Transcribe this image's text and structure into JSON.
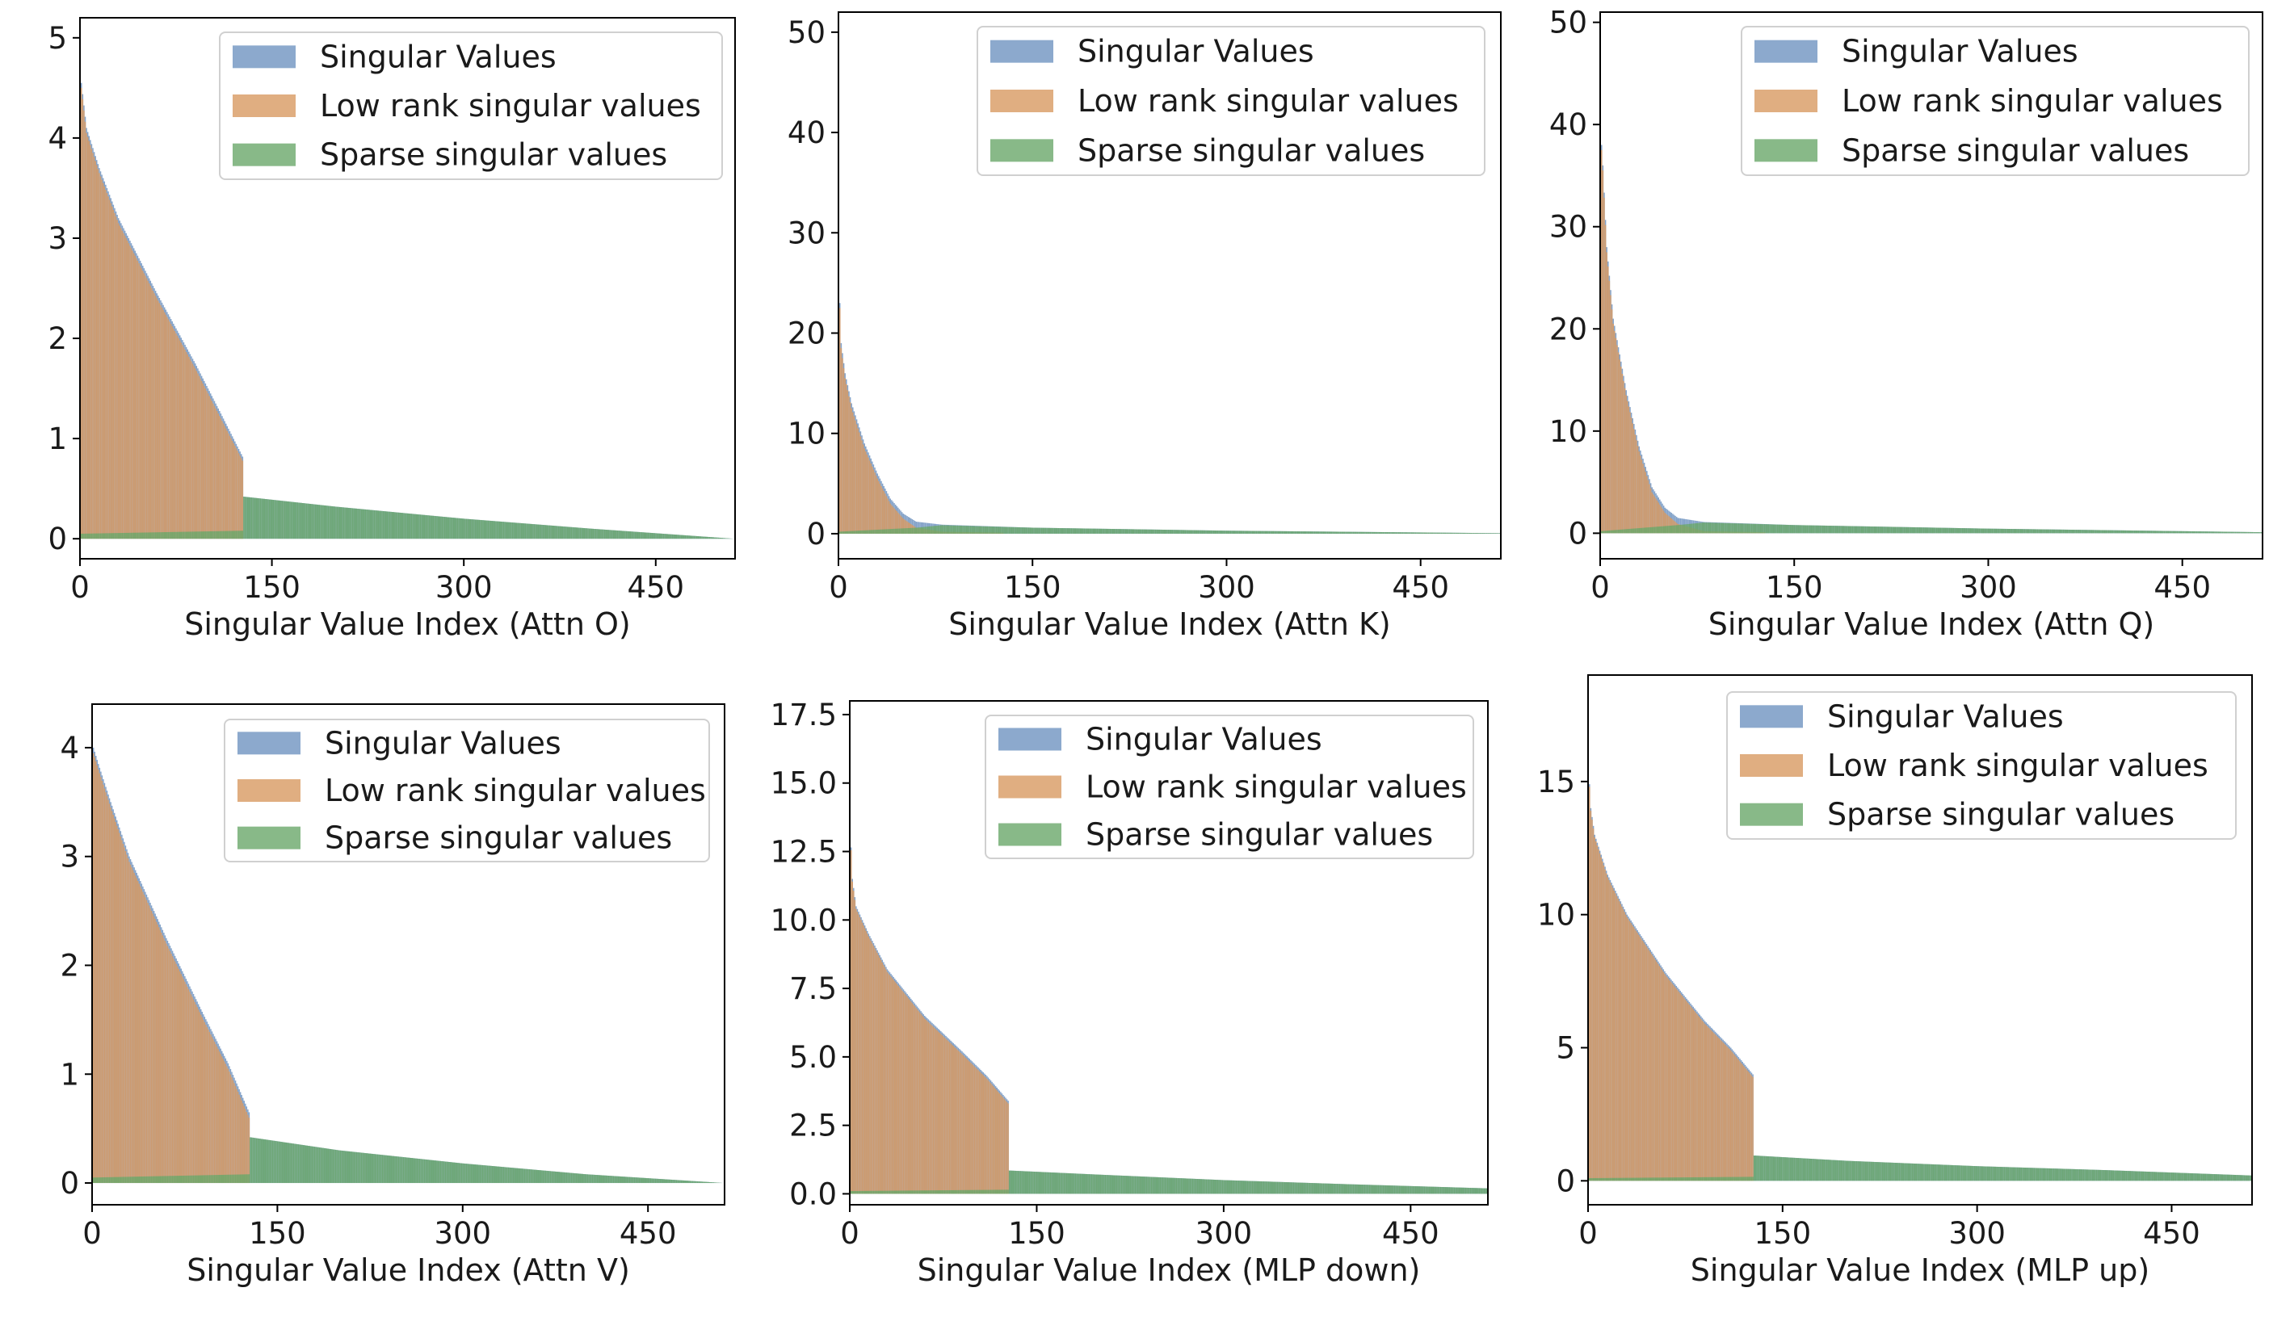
{
  "figure": {
    "colors": {
      "singular": "#6f93c0",
      "low_rank": "#d89a62",
      "sparse": "#6aa86a",
      "overlap": "#b08850",
      "axis": "#000000"
    }
  },
  "chart_data": [
    {
      "type": "bar",
      "title": "",
      "xlabel": "Singular Value Index (Attn O)",
      "ylabel": "",
      "xlim": [
        0,
        512
      ],
      "ylim": [
        -0.2,
        5.2
      ],
      "xticks": [
        0,
        150,
        300,
        450
      ],
      "xtick_labels": [
        "0",
        "150",
        "300",
        "450"
      ],
      "yticks": [
        0,
        1,
        2,
        3,
        4,
        5
      ],
      "ytick_labels": [
        "0",
        "1",
        "2",
        "3",
        "4",
        "5"
      ],
      "legend": [
        "Singular Values",
        "Low rank singular values",
        "Sparse singular values"
      ],
      "legend_position": "top-right",
      "n_values": 512,
      "rank_cutoff": 128,
      "series": [
        {
          "name": "Singular Values",
          "points": [
            [
              0,
              4.9
            ],
            [
              1,
              4.55
            ],
            [
              5,
              4.1
            ],
            [
              15,
              3.7
            ],
            [
              30,
              3.2
            ],
            [
              60,
              2.45
            ],
            [
              90,
              1.75
            ],
            [
              110,
              1.25
            ],
            [
              127,
              0.82
            ],
            [
              128,
              0.42
            ],
            [
              200,
              0.32
            ],
            [
              300,
              0.2
            ],
            [
              400,
              0.1
            ],
            [
              511,
              0.0
            ]
          ]
        },
        {
          "name": "Low rank singular values",
          "points": [
            [
              0,
              4.85
            ],
            [
              1,
              4.5
            ],
            [
              5,
              4.05
            ],
            [
              15,
              3.65
            ],
            [
              30,
              3.15
            ],
            [
              60,
              2.4
            ],
            [
              90,
              1.7
            ],
            [
              110,
              1.2
            ],
            [
              127,
              0.78
            ],
            [
              128,
              0.0
            ]
          ]
        },
        {
          "name": "Sparse singular values",
          "points": [
            [
              0,
              0.05
            ],
            [
              127,
              0.08
            ],
            [
              128,
              0.42
            ],
            [
              200,
              0.32
            ],
            [
              300,
              0.2
            ],
            [
              400,
              0.1
            ],
            [
              511,
              0.0
            ]
          ]
        }
      ]
    },
    {
      "type": "bar",
      "title": "",
      "xlabel": "Singular Value Index (Attn K)",
      "ylabel": "",
      "xlim": [
        0,
        512
      ],
      "ylim": [
        -2.5,
        52.0
      ],
      "xticks": [
        0,
        150,
        300,
        450
      ],
      "xtick_labels": [
        "0",
        "150",
        "300",
        "450"
      ],
      "yticks": [
        0,
        10,
        20,
        30,
        40,
        50
      ],
      "ytick_labels": [
        "0",
        "10",
        "20",
        "30",
        "40",
        "50"
      ],
      "legend": [
        "Singular Values",
        "Low rank singular values",
        "Sparse singular values"
      ],
      "legend_position": "top-right",
      "n_values": 512,
      "rank_cutoff": 128,
      "series": [
        {
          "name": "Singular Values",
          "points": [
            [
              0,
              27
            ],
            [
              2,
              19
            ],
            [
              5,
              16
            ],
            [
              10,
              13
            ],
            [
              20,
              9
            ],
            [
              30,
              6
            ],
            [
              40,
              3.5
            ],
            [
              50,
              2
            ],
            [
              60,
              1.2
            ],
            [
              80,
              0.9
            ],
            [
              150,
              0.6
            ],
            [
              300,
              0.3
            ],
            [
              511,
              0.05
            ]
          ]
        },
        {
          "name": "Low rank singular values",
          "points": [
            [
              0,
              26.5
            ],
            [
              2,
              18.5
            ],
            [
              5,
              15.5
            ],
            [
              10,
              12.5
            ],
            [
              20,
              8.5
            ],
            [
              30,
              5.5
            ],
            [
              40,
              3
            ],
            [
              50,
              1.5
            ],
            [
              60,
              0.6
            ],
            [
              80,
              0.2
            ],
            [
              127,
              0.1
            ],
            [
              128,
              0.0
            ]
          ]
        },
        {
          "name": "Sparse singular values",
          "points": [
            [
              0,
              0.2
            ],
            [
              60,
              0.6
            ],
            [
              80,
              0.85
            ],
            [
              150,
              0.6
            ],
            [
              300,
              0.3
            ],
            [
              511,
              0.05
            ]
          ]
        }
      ]
    },
    {
      "type": "bar",
      "title": "",
      "xlabel": "Singular Value Index (Attn Q)",
      "ylabel": "",
      "xlim": [
        0,
        512
      ],
      "ylim": [
        -2.5,
        51.0
      ],
      "xticks": [
        0,
        150,
        300,
        450
      ],
      "xtick_labels": [
        "0",
        "150",
        "300",
        "450"
      ],
      "yticks": [
        0,
        10,
        20,
        30,
        40,
        50
      ],
      "ytick_labels": [
        "0",
        "10",
        "20",
        "30",
        "40",
        "50"
      ],
      "legend": [
        "Singular Values",
        "Low rank singular values",
        "Sparse singular values"
      ],
      "legend_position": "top-right",
      "n_values": 512,
      "rank_cutoff": 128,
      "series": [
        {
          "name": "Singular Values",
          "points": [
            [
              0,
              40
            ],
            [
              2,
              36
            ],
            [
              5,
              28
            ],
            [
              10,
              21
            ],
            [
              20,
              14
            ],
            [
              30,
              8.5
            ],
            [
              40,
              4.5
            ],
            [
              50,
              2.5
            ],
            [
              60,
              1.5
            ],
            [
              80,
              1.1
            ],
            [
              150,
              0.8
            ],
            [
              300,
              0.45
            ],
            [
              511,
              0.1
            ]
          ]
        },
        {
          "name": "Low rank singular values",
          "points": [
            [
              0,
              39.5
            ],
            [
              2,
              35.5
            ],
            [
              5,
              27.5
            ],
            [
              10,
              20.5
            ],
            [
              20,
              13.5
            ],
            [
              30,
              8
            ],
            [
              40,
              4
            ],
            [
              50,
              2
            ],
            [
              60,
              0.9
            ],
            [
              80,
              0.2
            ],
            [
              127,
              0.1
            ],
            [
              128,
              0.0
            ]
          ]
        },
        {
          "name": "Sparse singular values",
          "points": [
            [
              0,
              0.2
            ],
            [
              60,
              0.8
            ],
            [
              80,
              1.05
            ],
            [
              150,
              0.8
            ],
            [
              300,
              0.45
            ],
            [
              511,
              0.1
            ]
          ]
        }
      ]
    },
    {
      "type": "bar",
      "title": "",
      "xlabel": "Singular Value Index (Attn V)",
      "ylabel": "",
      "xlim": [
        0,
        512
      ],
      "ylim": [
        -0.2,
        4.4
      ],
      "xticks": [
        0,
        150,
        300,
        450
      ],
      "xtick_labels": [
        "0",
        "150",
        "300",
        "450"
      ],
      "yticks": [
        0,
        1,
        2,
        3,
        4
      ],
      "ytick_labels": [
        "0",
        "1",
        "2",
        "3",
        "4"
      ],
      "legend": [
        "Singular Values",
        "Low rank singular values",
        "Sparse singular values"
      ],
      "legend_position": "top-right",
      "n_values": 512,
      "rank_cutoff": 128,
      "series": [
        {
          "name": "Singular Values",
          "points": [
            [
              0,
              4.1
            ],
            [
              1,
              4.0
            ],
            [
              5,
              3.85
            ],
            [
              15,
              3.5
            ],
            [
              30,
              3.0
            ],
            [
              60,
              2.25
            ],
            [
              90,
              1.55
            ],
            [
              110,
              1.1
            ],
            [
              127,
              0.65
            ],
            [
              128,
              0.42
            ],
            [
              200,
              0.3
            ],
            [
              300,
              0.18
            ],
            [
              400,
              0.08
            ],
            [
              511,
              0.0
            ]
          ]
        },
        {
          "name": "Low rank singular values",
          "points": [
            [
              0,
              4.05
            ],
            [
              1,
              3.95
            ],
            [
              5,
              3.8
            ],
            [
              15,
              3.45
            ],
            [
              30,
              2.95
            ],
            [
              60,
              2.2
            ],
            [
              90,
              1.5
            ],
            [
              110,
              1.05
            ],
            [
              127,
              0.6
            ],
            [
              128,
              0.0
            ]
          ]
        },
        {
          "name": "Sparse singular values",
          "points": [
            [
              0,
              0.05
            ],
            [
              127,
              0.08
            ],
            [
              128,
              0.42
            ],
            [
              200,
              0.3
            ],
            [
              300,
              0.18
            ],
            [
              400,
              0.08
            ],
            [
              511,
              0.0
            ]
          ]
        }
      ]
    },
    {
      "type": "bar",
      "title": "",
      "xlabel": "Singular Value Index (MLP down)",
      "ylabel": "",
      "xlim": [
        0,
        512
      ],
      "ylim": [
        -0.4,
        18.0
      ],
      "xticks": [
        0,
        150,
        300,
        450
      ],
      "xtick_labels": [
        "0",
        "150",
        "300",
        "450"
      ],
      "yticks": [
        0,
        2.5,
        5,
        7.5,
        10,
        12.5,
        15,
        17.5
      ],
      "ytick_labels": [
        "0.0",
        "2.5",
        "5.0",
        "7.5",
        "10.0",
        "12.5",
        "15.0",
        "17.5"
      ],
      "legend": [
        "Singular Values",
        "Low rank singular values",
        "Sparse singular values"
      ],
      "legend_position": "top-right",
      "n_values": 512,
      "rank_cutoff": 128,
      "series": [
        {
          "name": "Singular Values",
          "points": [
            [
              0,
              13.8
            ],
            [
              2,
              11.5
            ],
            [
              5,
              10.5
            ],
            [
              15,
              9.5
            ],
            [
              30,
              8.2
            ],
            [
              60,
              6.5
            ],
            [
              90,
              5.2
            ],
            [
              110,
              4.3
            ],
            [
              127,
              3.4
            ],
            [
              128,
              0.85
            ],
            [
              200,
              0.7
            ],
            [
              300,
              0.5
            ],
            [
              400,
              0.35
            ],
            [
              511,
              0.2
            ]
          ]
        },
        {
          "name": "Low rank singular values",
          "points": [
            [
              0,
              13.7
            ],
            [
              2,
              11.4
            ],
            [
              5,
              10.4
            ],
            [
              15,
              9.4
            ],
            [
              30,
              8.1
            ],
            [
              60,
              6.4
            ],
            [
              90,
              5.1
            ],
            [
              110,
              4.2
            ],
            [
              127,
              3.3
            ],
            [
              128,
              0.0
            ]
          ]
        },
        {
          "name": "Sparse singular values",
          "points": [
            [
              0,
              0.1
            ],
            [
              127,
              0.15
            ],
            [
              128,
              0.85
            ],
            [
              200,
              0.7
            ],
            [
              300,
              0.5
            ],
            [
              400,
              0.35
            ],
            [
              511,
              0.2
            ]
          ]
        }
      ]
    },
    {
      "type": "bar",
      "title": "",
      "xlabel": "Singular Value Index (MLP up)",
      "ylabel": "",
      "xlim": [
        0,
        512
      ],
      "ylim": [
        -0.9,
        19.0
      ],
      "xticks": [
        0,
        150,
        300,
        450
      ],
      "xtick_labels": [
        "0",
        "150",
        "300",
        "450"
      ],
      "yticks": [
        0,
        5,
        10,
        15
      ],
      "ytick_labels": [
        "0",
        "5",
        "10",
        "15"
      ],
      "legend": [
        "Singular Values",
        "Low rank singular values",
        "Sparse singular values"
      ],
      "legend_position": "top-right",
      "n_values": 512,
      "rank_cutoff": 128,
      "series": [
        {
          "name": "Singular Values",
          "points": [
            [
              0,
              15.8
            ],
            [
              2,
              14
            ],
            [
              5,
              13
            ],
            [
              15,
              11.5
            ],
            [
              30,
              10
            ],
            [
              60,
              7.8
            ],
            [
              90,
              6
            ],
            [
              110,
              5
            ],
            [
              127,
              4
            ],
            [
              128,
              0.95
            ],
            [
              200,
              0.75
            ],
            [
              300,
              0.55
            ],
            [
              400,
              0.4
            ],
            [
              511,
              0.2
            ]
          ]
        },
        {
          "name": "Low rank singular values",
          "points": [
            [
              0,
              15.7
            ],
            [
              2,
              13.9
            ],
            [
              5,
              12.9
            ],
            [
              15,
              11.4
            ],
            [
              30,
              9.9
            ],
            [
              60,
              7.7
            ],
            [
              90,
              5.9
            ],
            [
              110,
              4.9
            ],
            [
              127,
              3.9
            ],
            [
              128,
              0.0
            ]
          ]
        },
        {
          "name": "Sparse singular values",
          "points": [
            [
              0,
              0.1
            ],
            [
              127,
              0.15
            ],
            [
              128,
              0.95
            ],
            [
              200,
              0.75
            ],
            [
              300,
              0.55
            ],
            [
              400,
              0.4
            ],
            [
              511,
              0.2
            ]
          ]
        }
      ]
    }
  ]
}
